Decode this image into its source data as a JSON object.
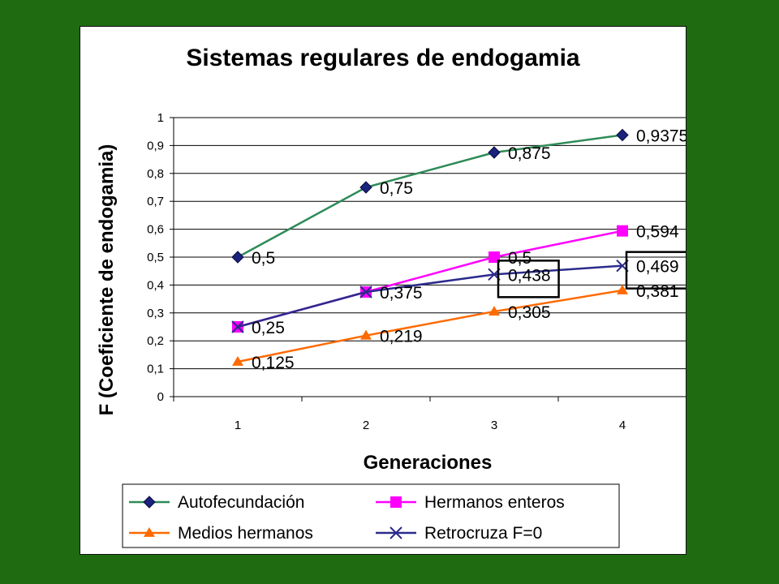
{
  "chart_data": {
    "type": "line",
    "title": "Sistemas regulares de endogamia",
    "xlabel": "Generaciones",
    "ylabel": "F (Coeficiente de endogamia)",
    "categories": [
      "1",
      "2",
      "3",
      "4"
    ],
    "ylim": [
      0,
      1
    ],
    "yticks": [
      "0",
      "0,1",
      "0,2",
      "0,3",
      "0,4",
      "0,5",
      "0,6",
      "0,7",
      "0,8",
      "0,9",
      "1"
    ],
    "grid": "horizontal",
    "legend_position": "bottom",
    "series": [
      {
        "name": "Autofecundación",
        "values": [
          0.5,
          0.75,
          0.875,
          0.9375
        ],
        "labels": [
          "0,5",
          "0,75",
          "0,875",
          "0,9375"
        ],
        "color": "#2e8b57",
        "marker": "diamond",
        "marker_color": "#1a237e"
      },
      {
        "name": "Hermanos enteros",
        "values": [
          0.25,
          0.375,
          0.5,
          0.594
        ],
        "labels": [
          "0,25",
          "0,375",
          "0,5",
          "0,594"
        ],
        "color": "#ff00ff",
        "marker": "square",
        "marker_color": "#ff00ff"
      },
      {
        "name": "Medios hermanos",
        "values": [
          0.125,
          0.219,
          0.305,
          0.381
        ],
        "labels": [
          "0,125",
          "0,219",
          "0,305",
          "0,381"
        ],
        "color": "#ff6a00",
        "marker": "triangle",
        "marker_color": "#ff6a00"
      },
      {
        "name": "Retrocruza F=0",
        "values": [
          0.25,
          0.375,
          0.438,
          0.469
        ],
        "labels": [
          "",
          "",
          "0,438",
          "0,469"
        ],
        "color": "#2b2b8c",
        "marker": "x",
        "marker_color": "#2b2b8c"
      }
    ],
    "highlighted_labels": [
      "0,438",
      "0,469"
    ]
  }
}
